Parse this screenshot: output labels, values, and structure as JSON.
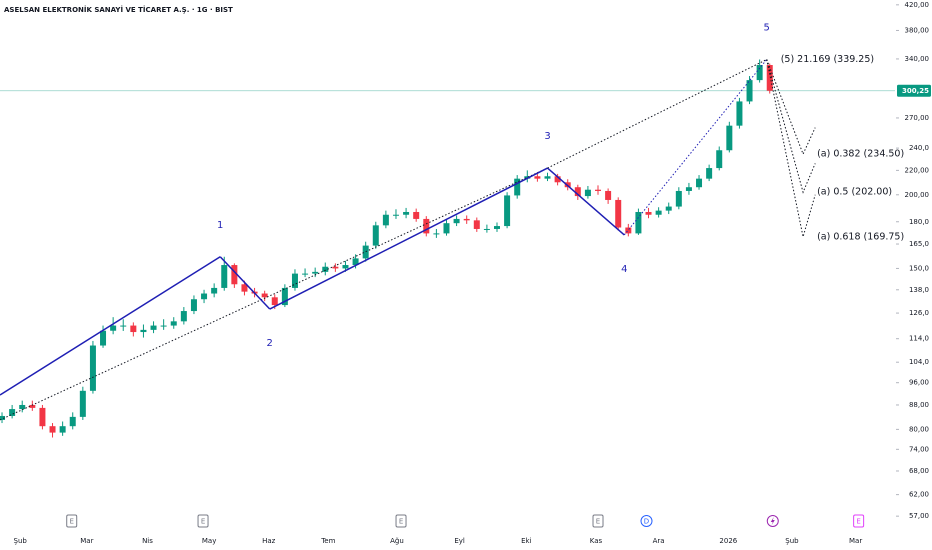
{
  "chart_data": {
    "type": "candlestick",
    "title": "ASELSAN ELEKTRONİK SANAYİ VE TİCARET A.Ş. · 1G · BIST",
    "open": [
      83,
      84.3,
      86.6,
      88,
      87,
      81,
      79,
      81,
      84,
      93,
      111,
      117.6,
      120,
      120,
      117,
      118,
      120,
      120,
      122,
      127,
      133,
      136,
      139,
      152,
      141,
      137,
      136,
      134,
      130,
      139,
      147,
      147,
      148,
      151,
      150,
      152,
      156,
      164,
      177.5,
      185,
      185,
      187,
      182,
      172,
      172,
      179,
      182,
      181,
      175,
      175,
      177,
      199.5,
      213,
      215,
      213,
      215,
      210,
      206,
      199,
      204,
      203,
      196,
      176,
      172,
      187,
      185,
      188,
      191,
      203,
      206,
      213,
      222,
      238,
      262,
      288,
      313,
      332
    ],
    "high": [
      85.5,
      88,
      89.5,
      89.5,
      88,
      82,
      82.5,
      85.5,
      94.5,
      113,
      120,
      124,
      123,
      121.5,
      120.5,
      122,
      123,
      124,
      129,
      135,
      138,
      141.5,
      157,
      153,
      143,
      139,
      137.5,
      135.5,
      141,
      149.5,
      150,
      150.5,
      153.5,
      153,
      154.5,
      158.5,
      166.5,
      180,
      188,
      189,
      190,
      189.5,
      184,
      175,
      181.5,
      184.5,
      184.5,
      183,
      178,
      179.5,
      202,
      216,
      220,
      218.5,
      218,
      217,
      212.5,
      208,
      207,
      207.5,
      205,
      198,
      178.5,
      189.5,
      190,
      190.5,
      194,
      206,
      209.5,
      216,
      225,
      241.5,
      266,
      292,
      318,
      339.25,
      334
    ],
    "low": [
      82,
      83.5,
      85.5,
      86,
      80,
      77.5,
      78,
      80,
      83,
      92,
      110,
      116,
      117.5,
      115,
      114.5,
      116.5,
      118,
      118.5,
      120.5,
      125.5,
      131,
      134,
      137.5,
      139,
      135,
      134,
      132,
      128,
      129,
      137.5,
      145,
      145,
      146,
      148,
      148,
      150,
      154,
      162,
      175.5,
      182,
      182.5,
      180,
      170,
      169,
      170.5,
      177,
      178.5,
      173,
      172.5,
      173,
      175.5,
      197,
      210,
      210.5,
      211,
      207.5,
      203.5,
      196,
      197,
      200,
      193,
      174,
      170,
      171,
      182.5,
      183,
      185.5,
      189,
      200,
      204,
      211,
      220,
      236,
      259,
      285,
      310,
      297
    ],
    "close": [
      84.3,
      86.6,
      88,
      87,
      81,
      79,
      81,
      84,
      93,
      111,
      117.6,
      120,
      120,
      117,
      118,
      120,
      120,
      122,
      127,
      133,
      136,
      139,
      152,
      141,
      137,
      136,
      134,
      130,
      139,
      147,
      147,
      148,
      151,
      150,
      152,
      156,
      164,
      177.5,
      185,
      185,
      187,
      182,
      172,
      172,
      179,
      182,
      181,
      175,
      175,
      177,
      199.5,
      213,
      215,
      213,
      215,
      210,
      206,
      199,
      204,
      203,
      196,
      176,
      172,
      187,
      185,
      188,
      191,
      203,
      206,
      213,
      222,
      238,
      262,
      288,
      313,
      332,
      300.25
    ],
    "up_color": "#089981",
    "down_color": "#f23645",
    "log_scale": true,
    "grid": false,
    "ylim": [
      54,
      428
    ],
    "yticks": [
      {
        "value": 420,
        "label": "420,00"
      },
      {
        "value": 380,
        "label": "380,00"
      },
      {
        "value": 340,
        "label": "340,00"
      },
      {
        "value": 270,
        "label": "270,00"
      },
      {
        "value": 240,
        "label": "240,0"
      },
      {
        "value": 220,
        "label": "220,00"
      },
      {
        "value": 200,
        "label": "200,00"
      },
      {
        "value": 180,
        "label": "180,0"
      },
      {
        "value": 165,
        "label": "165,0"
      },
      {
        "value": 150,
        "label": "150,0"
      },
      {
        "value": 138,
        "label": "138,0"
      },
      {
        "value": 126,
        "label": "126,0"
      },
      {
        "value": 114,
        "label": "114,0"
      },
      {
        "value": 104,
        "label": "104,0"
      },
      {
        "value": 96,
        "label": "96,00"
      },
      {
        "value": 88,
        "label": "88,00"
      },
      {
        "value": 80,
        "label": "80,00"
      },
      {
        "value": 74,
        "label": "74,00"
      },
      {
        "value": 68,
        "label": "68,00"
      },
      {
        "value": 62,
        "label": "62,00"
      },
      {
        "value": 57,
        "label": "57,00"
      }
    ],
    "xlim": [
      -0.2,
      88.4
    ],
    "xticks": [
      {
        "value": 1.8,
        "label": "Şub"
      },
      {
        "value": 8.4,
        "label": "Mar"
      },
      {
        "value": 14.4,
        "label": "Nis"
      },
      {
        "value": 20.5,
        "label": "May"
      },
      {
        "value": 26.4,
        "label": "Haz"
      },
      {
        "value": 32.3,
        "label": "Tem"
      },
      {
        "value": 39.1,
        "label": "Ağu"
      },
      {
        "value": 45.3,
        "label": "Eyl"
      },
      {
        "value": 51.9,
        "label": "Eki"
      },
      {
        "value": 58.8,
        "label": "Kas"
      },
      {
        "value": 65,
        "label": "Ara"
      },
      {
        "value": 71.9,
        "label": "2026"
      },
      {
        "value": 78.2,
        "label": "Şub"
      },
      {
        "value": 84.5,
        "label": "Mar"
      }
    ],
    "last_price": {
      "value": 300.25,
      "label": "300,25",
      "color": "#089981"
    },
    "wave_color": "#1f1fb4",
    "waves": {
      "labels": [
        null,
        "1",
        "2",
        "3",
        "4",
        "5"
      ],
      "x": [
        -0.2,
        21.6,
        26.5,
        54,
        61.6,
        75.7
      ],
      "values": [
        91.5,
        157,
        128,
        222,
        171,
        339.25
      ]
    },
    "trendline": {
      "x": [
        -0.2,
        54
      ],
      "values": [
        83,
        222
      ]
    },
    "peak_label": "(5) 21.169 (339.25)",
    "projections": [
      {
        "label": "(a) 0.382 (234.50)",
        "x": [
          79.3,
          80.5
        ],
        "values": [
          234.5,
          260
        ]
      },
      {
        "label": "(a) 0.5 (202.00)",
        "x": [
          79.3,
          80.5
        ],
        "values": [
          202,
          226
        ]
      },
      {
        "label": "(a) 0.618 (169.75)",
        "x": [
          79.3,
          80.5
        ],
        "values": [
          169.75,
          200
        ]
      }
    ],
    "events": {
      "labels": [
        "E",
        "E",
        "E",
        "E",
        "D",
        null,
        "E"
      ],
      "x": [
        6.9,
        19.9,
        39.5,
        59,
        63.8,
        76.3,
        84.8
      ],
      "colors": [
        "#787b86",
        "#787b86",
        "#787b86",
        "#787b86",
        "#2962ff",
        "#9c27b0",
        "#e040fb"
      ]
    }
  }
}
